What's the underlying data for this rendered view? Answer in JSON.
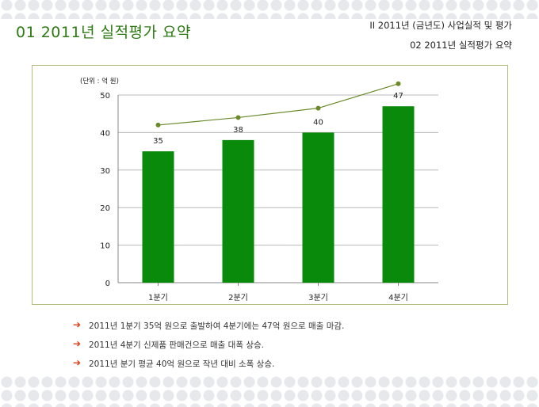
{
  "header": {
    "title": "01  2011년 실적평가 요약",
    "breadcrumb": "II  2011년 (금년도) 사업실적 및 평가",
    "breadcrumb_sub": "02  2011년 실적평가 요약"
  },
  "chart_data": {
    "type": "bar",
    "unit_label": "(단위 : 억 원)",
    "categories": [
      "1분기",
      "2분기",
      "3분기",
      "4분기"
    ],
    "values": [
      35,
      38,
      40,
      47
    ],
    "ylim": [
      0,
      50
    ],
    "yticks": [
      0,
      10,
      20,
      30,
      40,
      50
    ],
    "trend_line": [
      42,
      44,
      46.5,
      53
    ],
    "grid": true,
    "colors": {
      "bar": "#0a8a0a",
      "line": "#6a8a2a",
      "grid": "#b8b8b8"
    }
  },
  "bullets": {
    "icon": "right-arrow-icon",
    "items": [
      "2011년 1분기 35억 원으로  출발하여 4분기에는 47억 원으로 매출 마감.",
      "2011년 4분기 신제품 판매건으로 매출 대폭 상승.",
      "2011년 분기 평균 40억 원으로 작년 대비 소폭 상승."
    ]
  }
}
